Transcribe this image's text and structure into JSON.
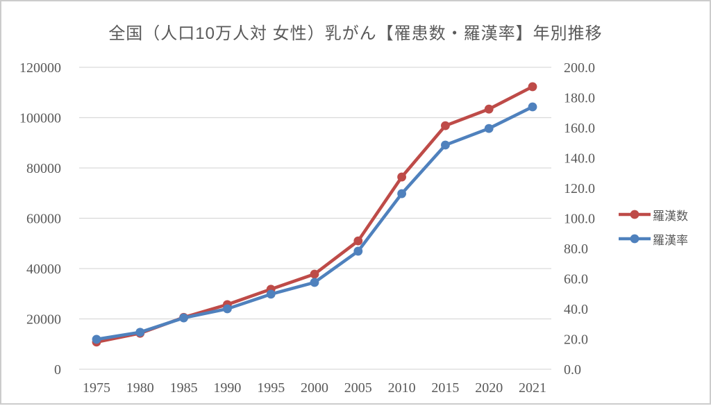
{
  "page": {
    "background": "#ffffff",
    "border_color": "#cccccc",
    "text_color": "#595959"
  },
  "chart": {
    "title": "全国（人口10万人対 女性）乳がん【罹患数・羅漢率】年別推移"
  },
  "chart_data": {
    "type": "line",
    "title": "全国（人口10万人対 女性）乳がん【罹患数・羅漢率】年別推移",
    "categories": [
      "1975",
      "1980",
      "1985",
      "1990",
      "1995",
      "2000",
      "2005",
      "2010",
      "2015",
      "2020",
      "2021"
    ],
    "series": [
      {
        "name": "羅漢数",
        "key": "incidence-count",
        "axis": "left",
        "color": "#be4b48",
        "marker": "circle",
        "values": [
          10800,
          14300,
          20600,
          25700,
          31800,
          37800,
          51000,
          76400,
          96800,
          103400,
          112300
        ]
      },
      {
        "name": "羅漢率",
        "key": "incidence-rate",
        "axis": "right",
        "color": "#4f81bd",
        "marker": "circle",
        "values": [
          19.8,
          24.5,
          34.0,
          40.0,
          49.7,
          57.5,
          78.2,
          116.3,
          148.5,
          159.5,
          173.8
        ]
      }
    ],
    "left_axis": {
      "min": 0,
      "max": 120000,
      "tick_interval": 20000,
      "tick_labels": [
        "0",
        "20000",
        "40000",
        "60000",
        "80000",
        "100000",
        "120000"
      ]
    },
    "right_axis": {
      "min": 0,
      "max": 200,
      "tick_interval": 20,
      "tick_labels": [
        "0.0",
        "20.0",
        "40.0",
        "60.0",
        "80.0",
        "100.0",
        "120.0",
        "140.0",
        "160.0",
        "180.0",
        "200.0"
      ]
    },
    "x_axis": {
      "tick_labels": [
        "1975",
        "1980",
        "1985",
        "1990",
        "1995",
        "2000",
        "2005",
        "2010",
        "2015",
        "2020",
        "2021"
      ]
    },
    "grid": true,
    "grid_color": "#d9d9d9",
    "text_color": "#595959",
    "legend_position": "right"
  }
}
